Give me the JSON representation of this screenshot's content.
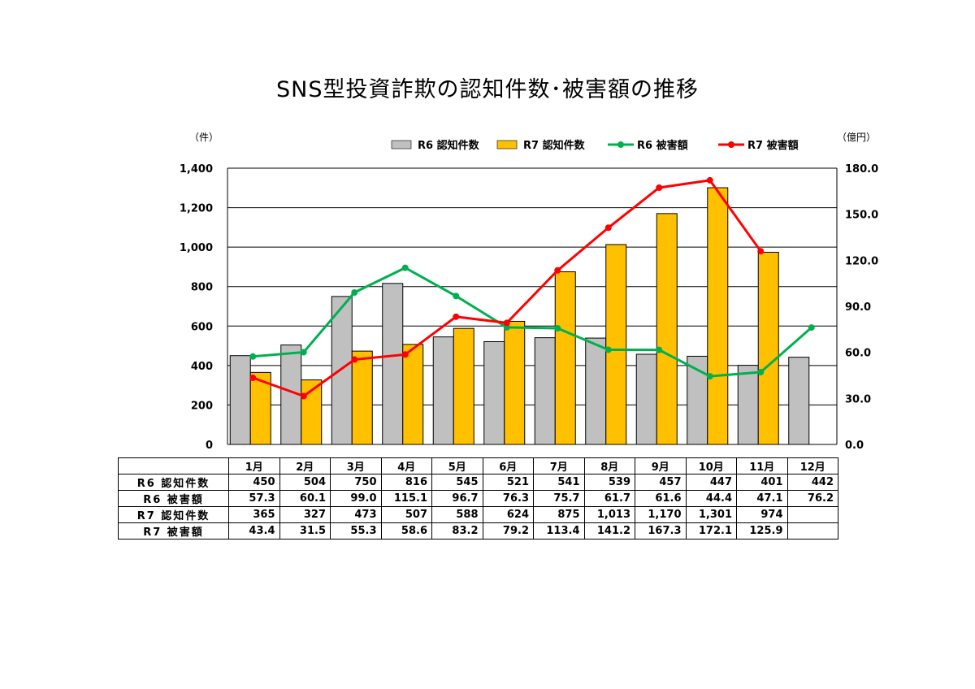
{
  "title": "SNS型投資詐欺の認知件数･被害額の推移",
  "left_unit": "（件）",
  "right_unit": "（億円）",
  "chart_data": {
    "type": "bar",
    "title": "SNS型投資詐欺の認知件数･被害額の推移",
    "categories": [
      "1月",
      "2月",
      "3月",
      "4月",
      "5月",
      "6月",
      "7月",
      "8月",
      "9月",
      "10月",
      "11月",
      "12月"
    ],
    "ylim": [
      0,
      1400
    ],
    "y2lim": [
      0,
      180
    ],
    "yticks": [
      "0",
      "200",
      "400",
      "600",
      "800",
      "1,000",
      "1,200",
      "1,400"
    ],
    "y2ticks": [
      "0.0",
      "30.0",
      "60.0",
      "90.0",
      "120.0",
      "150.0",
      "180.0"
    ],
    "grid": true,
    "legend": "top",
    "series": [
      {
        "name": "R6 認知件数",
        "type": "bar",
        "axis": "left",
        "color": "#c0c0c0",
        "values": [
          450,
          504,
          750,
          816,
          545,
          521,
          541,
          539,
          457,
          447,
          401,
          442
        ]
      },
      {
        "name": "R7 認知件数",
        "type": "bar",
        "axis": "left",
        "color": "#ffc000",
        "values": [
          365,
          327,
          473,
          507,
          588,
          624,
          875,
          1013,
          1170,
          1301,
          974,
          null
        ]
      },
      {
        "name": "R6 被害額",
        "type": "line",
        "axis": "right",
        "color": "#00b050",
        "values": [
          57.3,
          60.1,
          99.0,
          115.1,
          96.7,
          76.3,
          75.7,
          61.7,
          61.6,
          44.4,
          47.1,
          76.2
        ]
      },
      {
        "name": "R7 被害額",
        "type": "line",
        "axis": "right",
        "color": "#ff0000",
        "values": [
          43.4,
          31.5,
          55.3,
          58.6,
          83.2,
          79.2,
          113.4,
          141.2,
          167.3,
          172.1,
          125.9,
          null
        ]
      }
    ]
  },
  "table": {
    "rows": [
      {
        "label": "R6 認知件数",
        "cells": [
          "450",
          "504",
          "750",
          "816",
          "545",
          "521",
          "541",
          "539",
          "457",
          "447",
          "401",
          "442"
        ]
      },
      {
        "label": "R6 被害額",
        "cells": [
          "57.3",
          "60.1",
          "99.0",
          "115.1",
          "96.7",
          "76.3",
          "75.7",
          "61.7",
          "61.6",
          "44.4",
          "47.1",
          "76.2"
        ]
      },
      {
        "label": "R7 認知件数",
        "cells": [
          "365",
          "327",
          "473",
          "507",
          "588",
          "624",
          "875",
          "1,013",
          "1,170",
          "1,301",
          "974",
          ""
        ]
      },
      {
        "label": "R7 被害額",
        "cells": [
          "43.4",
          "31.5",
          "55.3",
          "58.6",
          "83.2",
          "79.2",
          "113.4",
          "141.2",
          "167.3",
          "172.1",
          "125.9",
          ""
        ]
      }
    ]
  }
}
